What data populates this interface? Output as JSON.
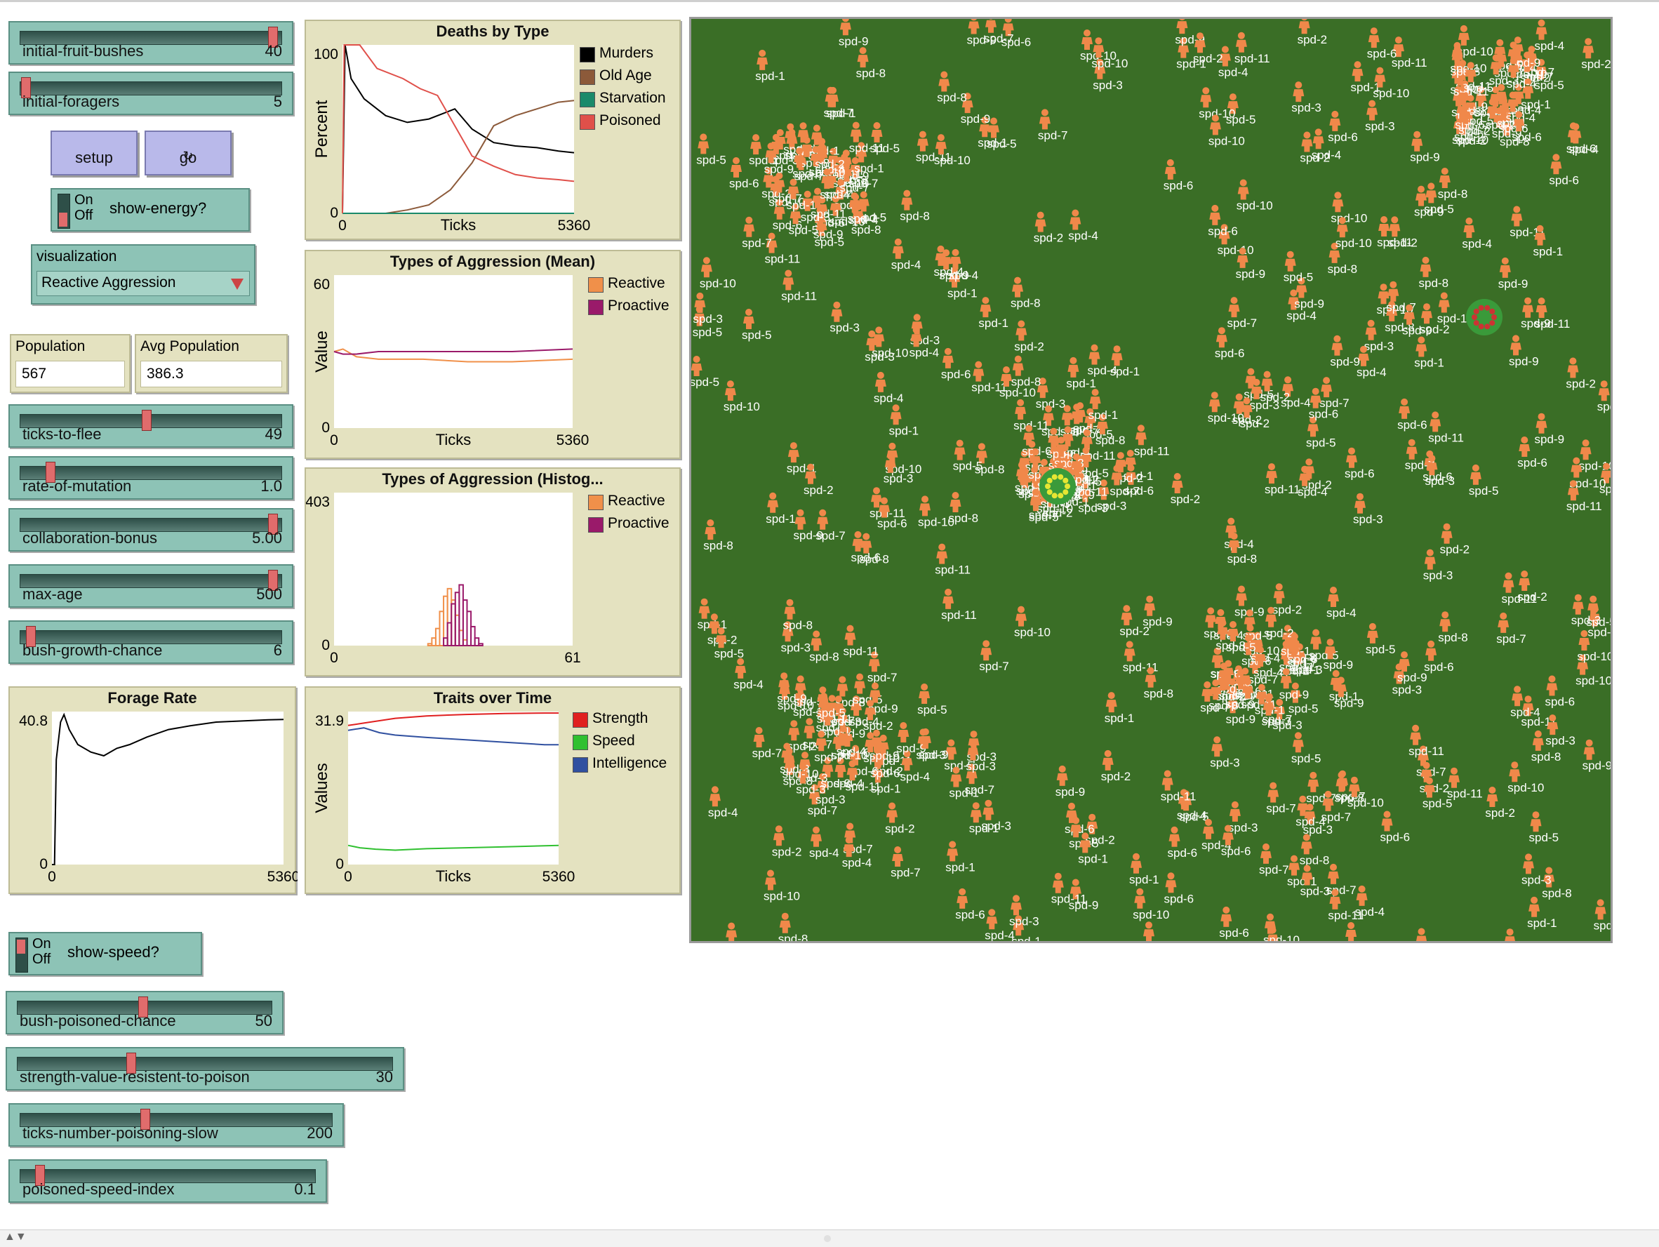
{
  "sliders": [
    {
      "id": "initial-fruit-bushes",
      "label": "initial-fruit-bushes",
      "value": "40",
      "fraction": 1.0
    },
    {
      "id": "initial-foragers",
      "label": "initial-foragers",
      "value": "5",
      "fraction": 0.0
    },
    {
      "id": "ticks-to-flee",
      "label": "ticks-to-flee",
      "value": "49",
      "fraction": 0.49
    },
    {
      "id": "rate-of-mutation",
      "label": "rate-of-mutation",
      "value": "1.0",
      "fraction": 0.1
    },
    {
      "id": "collaboration-bonus",
      "label": "collaboration-bonus",
      "value": "5.00",
      "fraction": 1.0
    },
    {
      "id": "max-age",
      "label": "max-age",
      "value": "500",
      "fraction": 1.0
    },
    {
      "id": "bush-growth-chance",
      "label": "bush-growth-chance",
      "value": "6",
      "fraction": 0.02
    },
    {
      "id": "bush-poisoned-chance",
      "label": "bush-poisoned-chance",
      "value": "50",
      "fraction": 0.5
    },
    {
      "id": "strength-value-resistent-to-poison",
      "label": "strength-value-resistent-to-poison",
      "value": "30",
      "fraction": 0.3
    },
    {
      "id": "ticks-number-poisoning-slow",
      "label": "ticks-number-poisoning-slow",
      "value": "200",
      "fraction": 0.4
    },
    {
      "id": "poisoned-speed-index",
      "label": "poisoned-speed-index",
      "value": "0.1",
      "fraction": 0.05
    }
  ],
  "buttons": {
    "setup": "setup",
    "go": "go",
    "go_forever_icon": "forever-arrows-icon"
  },
  "switches": {
    "show_energy": {
      "label": "show-energy?",
      "on": "On",
      "off": "Off",
      "state": "off"
    },
    "show_speed": {
      "label": "show-speed?",
      "on": "On",
      "off": "Off",
      "state": "on"
    }
  },
  "chooser": {
    "label": "visualization",
    "value": "Reactive Aggression"
  },
  "monitors": {
    "population": {
      "label": "Population",
      "value": "567"
    },
    "avg_population": {
      "label": "Avg Population",
      "value": "386.3"
    }
  },
  "world": {
    "bush_color": "#3a9a3a",
    "turtle_color": "#f0884a",
    "background": "#3a6e26",
    "sample_labels": [
      "spd-4",
      "spd-6",
      "spd-5",
      "spd-7",
      "spd-8",
      "spd-3",
      "spd-9",
      "spd-10",
      "spd-11",
      "spd-2",
      "spd-1"
    ]
  },
  "chart_data": [
    {
      "id": "deaths",
      "type": "line",
      "title": "Deaths by Type",
      "xlabel": "Ticks",
      "ylabel": "Percent",
      "xlim": [
        0,
        5360
      ],
      "ylim": [
        0,
        100
      ],
      "x_ticks": [
        "0",
        "5360"
      ],
      "y_ticks": [
        "0",
        "100"
      ],
      "series": [
        {
          "name": "Murders",
          "color": "#000000",
          "points": [
            [
              0,
              0
            ],
            [
              60,
              100
            ],
            [
              200,
              80
            ],
            [
              500,
              68
            ],
            [
              1000,
              58
            ],
            [
              1500,
              54
            ],
            [
              2000,
              56
            ],
            [
              2600,
              62
            ],
            [
              3000,
              50
            ],
            [
              3500,
              42
            ],
            [
              4000,
              40
            ],
            [
              4500,
              39
            ],
            [
              5000,
              37
            ],
            [
              5360,
              36
            ]
          ]
        },
        {
          "name": "Old Age",
          "color": "#8c5a3a",
          "points": [
            [
              0,
              0
            ],
            [
              1000,
              0
            ],
            [
              1500,
              2
            ],
            [
              2000,
              5
            ],
            [
              2500,
              14
            ],
            [
              3000,
              30
            ],
            [
              3500,
              52
            ],
            [
              4000,
              58
            ],
            [
              4500,
              62
            ],
            [
              5000,
              66
            ],
            [
              5360,
              67
            ]
          ]
        },
        {
          "name": "Starvation",
          "color": "#1a8a6a",
          "points": [
            [
              0,
              0
            ],
            [
              5360,
              0
            ]
          ]
        },
        {
          "name": "Poisoned",
          "color": "#e0504a",
          "points": [
            [
              0,
              0
            ],
            [
              40,
              100
            ],
            [
              400,
              100
            ],
            [
              800,
              86
            ],
            [
              1400,
              80
            ],
            [
              1800,
              74
            ],
            [
              2200,
              70
            ],
            [
              2600,
              52
            ],
            [
              3000,
              34
            ],
            [
              3500,
              28
            ],
            [
              4000,
              23
            ],
            [
              4500,
              21
            ],
            [
              5000,
              20
            ],
            [
              5360,
              19
            ]
          ]
        }
      ]
    },
    {
      "id": "aggression_mean",
      "type": "line",
      "title": "Types of Aggression (Mean)",
      "xlabel": "Ticks",
      "ylabel": "Value",
      "xlim": [
        0,
        5360
      ],
      "ylim": [
        0,
        60
      ],
      "x_ticks": [
        "0",
        "5360"
      ],
      "y_ticks": [
        "0",
        "60"
      ],
      "series": [
        {
          "name": "Reactive",
          "color": "#f0904a",
          "points": [
            [
              0,
              30
            ],
            [
              200,
              31
            ],
            [
              500,
              28
            ],
            [
              1000,
              27
            ],
            [
              2000,
              27
            ],
            [
              3000,
              26
            ],
            [
              4000,
              26
            ],
            [
              5360,
              27
            ]
          ]
        },
        {
          "name": "Proactive",
          "color": "#9a1a6a",
          "points": [
            [
              0,
              30
            ],
            [
              200,
              29
            ],
            [
              500,
              29
            ],
            [
              1000,
              30
            ],
            [
              2000,
              30
            ],
            [
              3000,
              30
            ],
            [
              4000,
              30
            ],
            [
              5360,
              31
            ]
          ]
        }
      ]
    },
    {
      "id": "aggression_hist",
      "type": "bar",
      "title": "Types of Aggression (Histog...",
      "xlabel": "",
      "ylabel": "",
      "xlim": [
        0,
        61
      ],
      "ylim": [
        0,
        403
      ],
      "x_ticks": [
        "0",
        "61"
      ],
      "y_ticks": [
        "0",
        "403"
      ],
      "series": [
        {
          "name": "Reactive",
          "color": "#f0904a",
          "bins": [
            [
              24,
              5
            ],
            [
              25,
              20
            ],
            [
              26,
              45
            ],
            [
              27,
              90
            ],
            [
              28,
              130
            ],
            [
              29,
              150
            ],
            [
              30,
              120
            ],
            [
              31,
              80
            ],
            [
              32,
              40
            ],
            [
              33,
              15
            ]
          ]
        },
        {
          "name": "Proactive",
          "color": "#9a1a6a",
          "bins": [
            [
              28,
              20
            ],
            [
              29,
              60
            ],
            [
              30,
              110
            ],
            [
              31,
              140
            ],
            [
              32,
              160
            ],
            [
              33,
              120
            ],
            [
              34,
              90
            ],
            [
              35,
              50
            ],
            [
              36,
              20
            ],
            [
              37,
              5
            ]
          ]
        }
      ]
    },
    {
      "id": "forage_rate",
      "type": "line",
      "title": "Forage Rate",
      "xlabel": "",
      "ylabel": "",
      "xlim": [
        0,
        5360
      ],
      "ylim": [
        0,
        40.8
      ],
      "x_ticks": [
        "0",
        "5360"
      ],
      "y_ticks": [
        "0",
        "40.8"
      ],
      "series": [
        {
          "name": "",
          "color": "#000000",
          "points": [
            [
              0,
              0
            ],
            [
              60,
              0
            ],
            [
              100,
              28
            ],
            [
              200,
              38
            ],
            [
              280,
              40
            ],
            [
              400,
              36
            ],
            [
              600,
              32
            ],
            [
              900,
              30
            ],
            [
              1200,
              29
            ],
            [
              1500,
              31
            ],
            [
              1800,
              32
            ],
            [
              2200,
              34
            ],
            [
              2700,
              36
            ],
            [
              3200,
              37
            ],
            [
              3800,
              38
            ],
            [
              4400,
              38.3
            ],
            [
              5000,
              38.6
            ],
            [
              5360,
              38.7
            ]
          ]
        }
      ]
    },
    {
      "id": "traits",
      "type": "line",
      "title": "Traits over Time",
      "xlabel": "Ticks",
      "ylabel": "Values",
      "xlim": [
        0,
        5360
      ],
      "ylim": [
        0,
        31.9
      ],
      "x_ticks": [
        "0",
        "5360"
      ],
      "y_ticks": [
        "0",
        "31.9"
      ],
      "series": [
        {
          "name": "Strength",
          "color": "#e02020",
          "points": [
            [
              0,
              29
            ],
            [
              400,
              29.5
            ],
            [
              800,
              30
            ],
            [
              1200,
              30.5
            ],
            [
              2000,
              31
            ],
            [
              3000,
              31.3
            ],
            [
              4000,
              31.5
            ],
            [
              5000,
              31.6
            ],
            [
              5360,
              31.6
            ]
          ]
        },
        {
          "name": "Speed",
          "color": "#30c030",
          "points": [
            [
              0,
              4
            ],
            [
              300,
              3.5
            ],
            [
              700,
              3.2
            ],
            [
              1200,
              3
            ],
            [
              2000,
              3.3
            ],
            [
              3000,
              3.5
            ],
            [
              4000,
              3.7
            ],
            [
              5000,
              3.9
            ],
            [
              5360,
              4
            ]
          ]
        },
        {
          "name": "Intelligence",
          "color": "#3050a0",
          "points": [
            [
              0,
              28
            ],
            [
              400,
              28.5
            ],
            [
              800,
              27.5
            ],
            [
              1200,
              27
            ],
            [
              2000,
              26.5
            ],
            [
              3000,
              26
            ],
            [
              4000,
              25.5
            ],
            [
              5000,
              25
            ],
            [
              5360,
              25
            ]
          ]
        }
      ]
    }
  ]
}
